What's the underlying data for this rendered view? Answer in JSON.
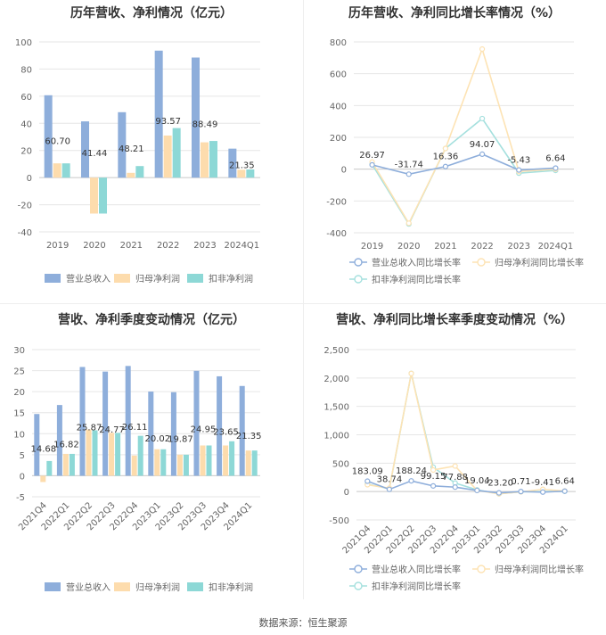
{
  "source": "数据来源：恒生聚源",
  "colors": {
    "revenue": "#8eaedb",
    "netprofit": "#fddcad",
    "deducted": "#8dd8d6",
    "revenue_line": "#8eaedb",
    "netprofit_line": "#fde3b4",
    "deducted_line": "#a5e0de"
  },
  "chart_data": [
    {
      "type": "bar",
      "title": "历年营收、净利情况（亿元）",
      "categories": [
        "2019",
        "2020",
        "2021",
        "2022",
        "2023",
        "2024Q1"
      ],
      "series": [
        {
          "name": "营业总收入",
          "values": [
            60.7,
            41.44,
            48.21,
            93.57,
            88.49,
            21.35
          ]
        },
        {
          "name": "归母净利润",
          "values": [
            10.5,
            -26.5,
            3.5,
            31.0,
            26.0,
            5.8
          ]
        },
        {
          "name": "扣非净利润",
          "values": [
            10.5,
            -26.5,
            8.5,
            36.5,
            27.0,
            6.0
          ]
        }
      ],
      "labels": [
        "60.70",
        "41.44",
        "48.21",
        "93.57",
        "88.49",
        "21.35"
      ],
      "ylim": [
        -40,
        100
      ],
      "yticks": [
        -40,
        -20,
        0,
        20,
        40,
        60,
        80,
        100
      ],
      "legend": "bottom"
    },
    {
      "type": "line",
      "title": "历年营收、净利同比增长率情况（%）",
      "categories": [
        "2019",
        "2020",
        "2021",
        "2022",
        "2023",
        "2024Q1"
      ],
      "series": [
        {
          "name": "营业总收入同比增长率",
          "values": [
            26.97,
            -31.74,
            16.36,
            94.07,
            -5.43,
            6.64
          ]
        },
        {
          "name": "归母净利润同比增长率",
          "values": [
            45,
            -340,
            130,
            755,
            -15,
            0
          ]
        },
        {
          "name": "扣非净利润同比增长率",
          "values": [
            30,
            -345,
            130,
            318,
            -25,
            -8
          ]
        }
      ],
      "labels": [
        "26.97",
        "-31.74",
        "16.36",
        "94.07",
        "-5.43",
        "6.64"
      ],
      "ylim": [
        -400,
        800
      ],
      "yticks": [
        -400,
        -200,
        0,
        200,
        400,
        600,
        800
      ],
      "legend": "bottom"
    },
    {
      "type": "bar",
      "title": "营收、净利季度变动情况（亿元）",
      "categories": [
        "2021Q4",
        "2022Q1",
        "2022Q2",
        "2022Q3",
        "2022Q4",
        "2023Q1",
        "2023Q2",
        "2023Q3",
        "2023Q4",
        "2024Q1"
      ],
      "series": [
        {
          "name": "营业总收入",
          "values": [
            14.68,
            16.82,
            25.87,
            24.77,
            26.11,
            20.02,
            19.87,
            24.95,
            23.65,
            21.35
          ]
        },
        {
          "name": "归母净利润",
          "values": [
            -1.5,
            5.2,
            11.0,
            10.2,
            4.8,
            6.3,
            5.0,
            7.2,
            7.2,
            6.0
          ]
        },
        {
          "name": "扣非净利润",
          "values": [
            3.5,
            5.2,
            10.8,
            10.2,
            9.5,
            6.3,
            5.0,
            7.2,
            8.2,
            6.0
          ]
        }
      ],
      "labels": [
        "14.68",
        "16.82",
        "25.87",
        "24.77",
        "26.11",
        "20.02",
        "19.87",
        "24.95",
        "23.65",
        "21.35"
      ],
      "ylim": [
        -5,
        30
      ],
      "yticks": [
        -5,
        0,
        5,
        10,
        15,
        20,
        25,
        30
      ],
      "legend": "bottom"
    },
    {
      "type": "line",
      "title": "营收、净利同比增长率季度变动情况（%）",
      "categories": [
        "2021Q4",
        "2022Q1",
        "2022Q2",
        "2022Q3",
        "2022Q4",
        "2023Q1",
        "2023Q2",
        "2023Q3",
        "2023Q4",
        "2024Q1"
      ],
      "series": [
        {
          "name": "营业总收入同比增长率",
          "values": [
            183.09,
            38.74,
            188.24,
            99.15,
            77.88,
            19.04,
            -23.2,
            0.71,
            -9.41,
            6.64
          ]
        },
        {
          "name": "归母净利润同比增长率",
          "values": [
            120,
            60,
            2080,
            380,
            450,
            20,
            -40,
            -5,
            40,
            10
          ]
        },
        {
          "name": "扣非净利润同比增长率",
          "values": [
            130,
            50,
            2080,
            430,
            150,
            30,
            -40,
            -5,
            0,
            5
          ]
        }
      ],
      "labels": [
        "183.09",
        "38.74",
        "188.24",
        "99.15",
        "77.88",
        "19.04",
        "-23.20",
        "0.71",
        "-9.41",
        "6.64"
      ],
      "ylim": [
        -500,
        2500
      ],
      "yticks": [
        -500,
        0,
        500,
        1000,
        1500,
        2000,
        2500
      ],
      "yticklabels": [
        "-500",
        "0",
        "500",
        "1,000",
        "1,500",
        "2,000",
        "2,500"
      ],
      "legend": "bottom"
    }
  ]
}
